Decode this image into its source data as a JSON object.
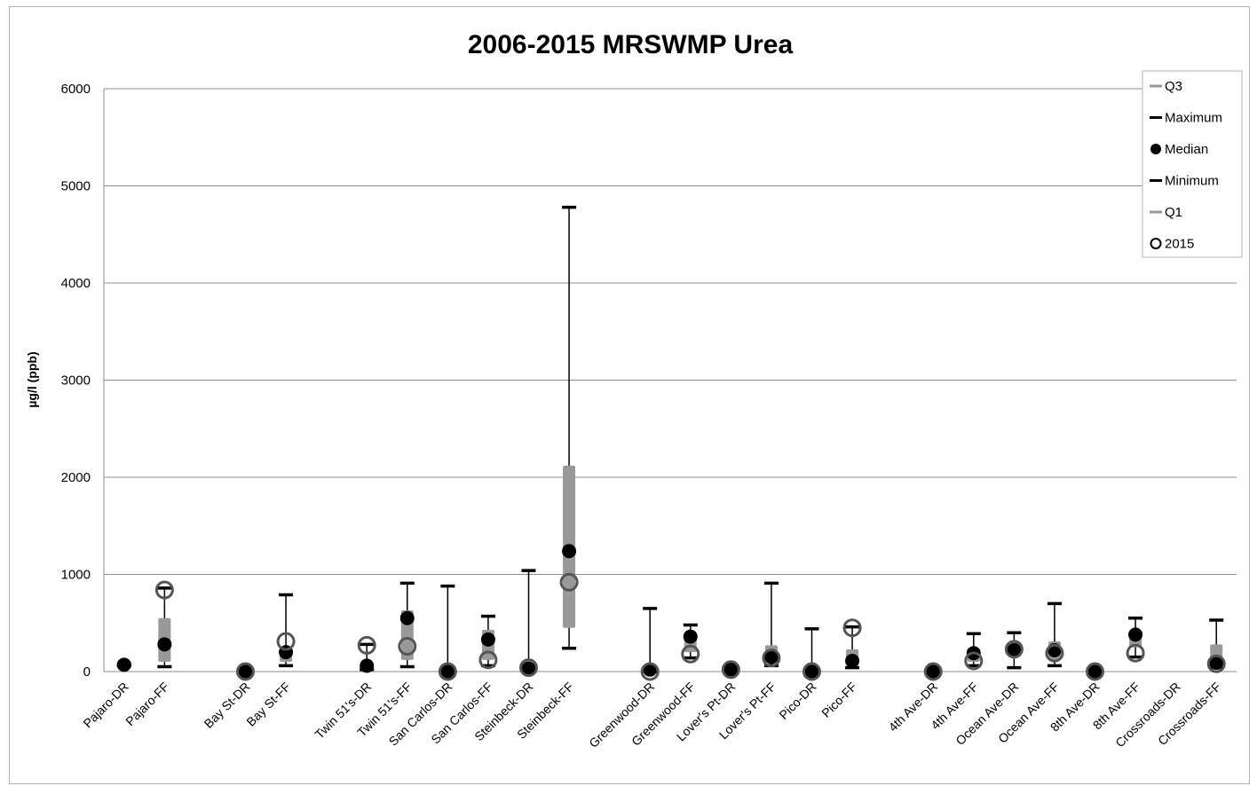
{
  "chart_data": {
    "type": "box",
    "title": "2006-2015 MRSWMP Urea",
    "ylabel": "µg/l  (ppb)",
    "xlabel": "",
    "ylim": [
      0,
      6000
    ],
    "yticks": [
      0,
      1000,
      2000,
      3000,
      4000,
      5000,
      6000
    ],
    "grid": true,
    "legend_position": "top-right",
    "legend": [
      "Q3",
      "Maximum",
      "Median",
      "Minimum",
      "Q1",
      "2015"
    ],
    "categories": [
      "Pajaro-DR",
      "Pajaro-FF",
      "",
      "Bay St-DR",
      "Bay St-FF",
      "",
      "Twin 51's-DR",
      "Twin 51's-FF",
      "San Carlos-DR",
      "San Carlos-FF",
      "Steinbeck-DR",
      "Steinbeck-FF",
      "",
      "Greenwood-DR",
      "Greenwood-FF",
      "Lover's Pt-DR",
      "Lover's Pt-FF",
      "Pico-DR",
      "Pico-FF",
      "",
      "4th Ave-DR",
      "4th Ave-FF",
      "Ocean Ave-DR",
      "Ocean Ave-FF",
      "8th Ave-DR",
      "8th Ave-FF",
      "Crossroads-DR",
      "Crossroads-FF"
    ],
    "series": [
      {
        "name": "Q3",
        "values": [
          70,
          550,
          null,
          0,
          240,
          null,
          100,
          630,
          0,
          430,
          110,
          2120,
          null,
          30,
          400,
          30,
          270,
          10,
          230,
          null,
          0,
          230,
          300,
          310,
          0,
          400,
          null,
          280
        ]
      },
      {
        "name": "Maximum",
        "values": [
          80,
          860,
          null,
          10,
          790,
          null,
          280,
          910,
          880,
          570,
          1040,
          4780,
          null,
          650,
          480,
          50,
          910,
          440,
          460,
          null,
          10,
          390,
          400,
          700,
          10,
          550,
          null,
          530
        ]
      },
      {
        "name": "Median",
        "values": [
          70,
          280,
          null,
          0,
          200,
          null,
          60,
          550,
          0,
          330,
          30,
          1240,
          null,
          20,
          360,
          20,
          150,
          0,
          110,
          null,
          0,
          190,
          220,
          220,
          0,
          380,
          null,
          90
        ]
      },
      {
        "name": "Minimum",
        "values": [
          60,
          50,
          null,
          0,
          60,
          null,
          20,
          50,
          0,
          60,
          10,
          240,
          null,
          0,
          140,
          10,
          60,
          0,
          40,
          null,
          0,
          60,
          40,
          60,
          0,
          150,
          null,
          40
        ]
      },
      {
        "name": "Q1",
        "values": [
          60,
          100,
          null,
          0,
          100,
          null,
          30,
          120,
          0,
          120,
          20,
          450,
          null,
          10,
          200,
          10,
          100,
          0,
          70,
          null,
          0,
          100,
          150,
          120,
          0,
          250,
          null,
          60
        ]
      },
      {
        "name": "2015",
        "values": [
          null,
          840,
          null,
          0,
          310,
          null,
          270,
          260,
          0,
          120,
          40,
          920,
          null,
          0,
          180,
          20,
          140,
          0,
          450,
          null,
          0,
          110,
          230,
          190,
          0,
          190,
          null,
          80
        ]
      }
    ]
  }
}
